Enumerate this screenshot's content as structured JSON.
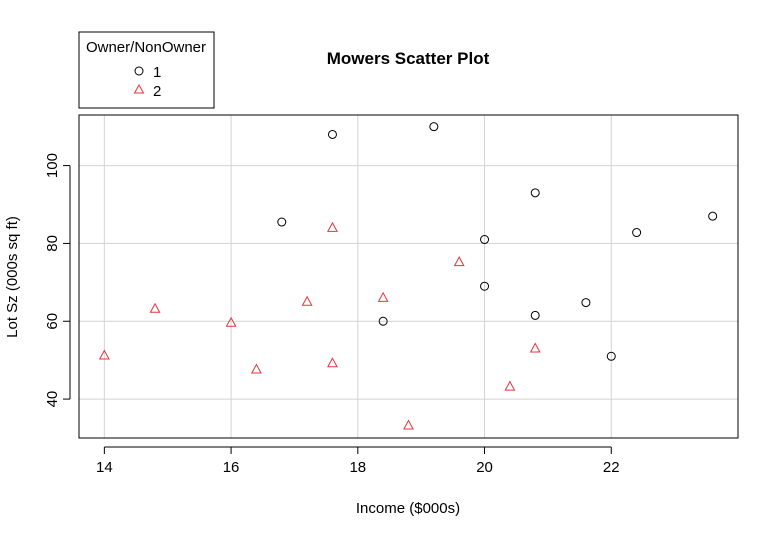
{
  "chart_data": {
    "type": "scatter",
    "title": "Mowers Scatter Plot",
    "xlabel": "Income ($000s)",
    "ylabel": "Lot Sz (000s sq ft)",
    "xlim": [
      13.6,
      24.0
    ],
    "ylim": [
      30,
      113
    ],
    "xticks": [
      14,
      16,
      18,
      20,
      22
    ],
    "yticks": [
      40,
      60,
      80,
      100
    ],
    "grid": true,
    "legend": {
      "title": "Owner/NonOwner",
      "position": "top-left",
      "entries": [
        {
          "label": "1",
          "marker": "circle",
          "color": "#000000"
        },
        {
          "label": "2",
          "marker": "triangle",
          "color": "#e8333b"
        }
      ]
    },
    "series": [
      {
        "name": "1",
        "marker": "circle",
        "color": "#000000",
        "points": [
          {
            "x": 16.8,
            "y": 85.5
          },
          {
            "x": 17.6,
            "y": 108.0
          },
          {
            "x": 18.4,
            "y": 60.0
          },
          {
            "x": 19.2,
            "y": 110.0
          },
          {
            "x": 20.0,
            "y": 81.0
          },
          {
            "x": 20.0,
            "y": 69.0
          },
          {
            "x": 20.8,
            "y": 93.0
          },
          {
            "x": 20.8,
            "y": 61.5
          },
          {
            "x": 21.6,
            "y": 64.8
          },
          {
            "x": 22.0,
            "y": 51.0
          },
          {
            "x": 22.4,
            "y": 82.8
          },
          {
            "x": 23.6,
            "y": 87.0
          }
        ]
      },
      {
        "name": "2",
        "marker": "triangle",
        "color": "#e8333b",
        "points": [
          {
            "x": 14.0,
            "y": 51.2
          },
          {
            "x": 14.8,
            "y": 63.2
          },
          {
            "x": 16.0,
            "y": 59.6
          },
          {
            "x": 16.4,
            "y": 47.6
          },
          {
            "x": 17.2,
            "y": 65.0
          },
          {
            "x": 17.6,
            "y": 84.0
          },
          {
            "x": 17.6,
            "y": 49.2
          },
          {
            "x": 18.4,
            "y": 66.0
          },
          {
            "x": 18.8,
            "y": 33.2
          },
          {
            "x": 19.6,
            "y": 75.2
          },
          {
            "x": 20.4,
            "y": 43.2
          },
          {
            "x": 20.8,
            "y": 53.0
          }
        ]
      }
    ]
  }
}
